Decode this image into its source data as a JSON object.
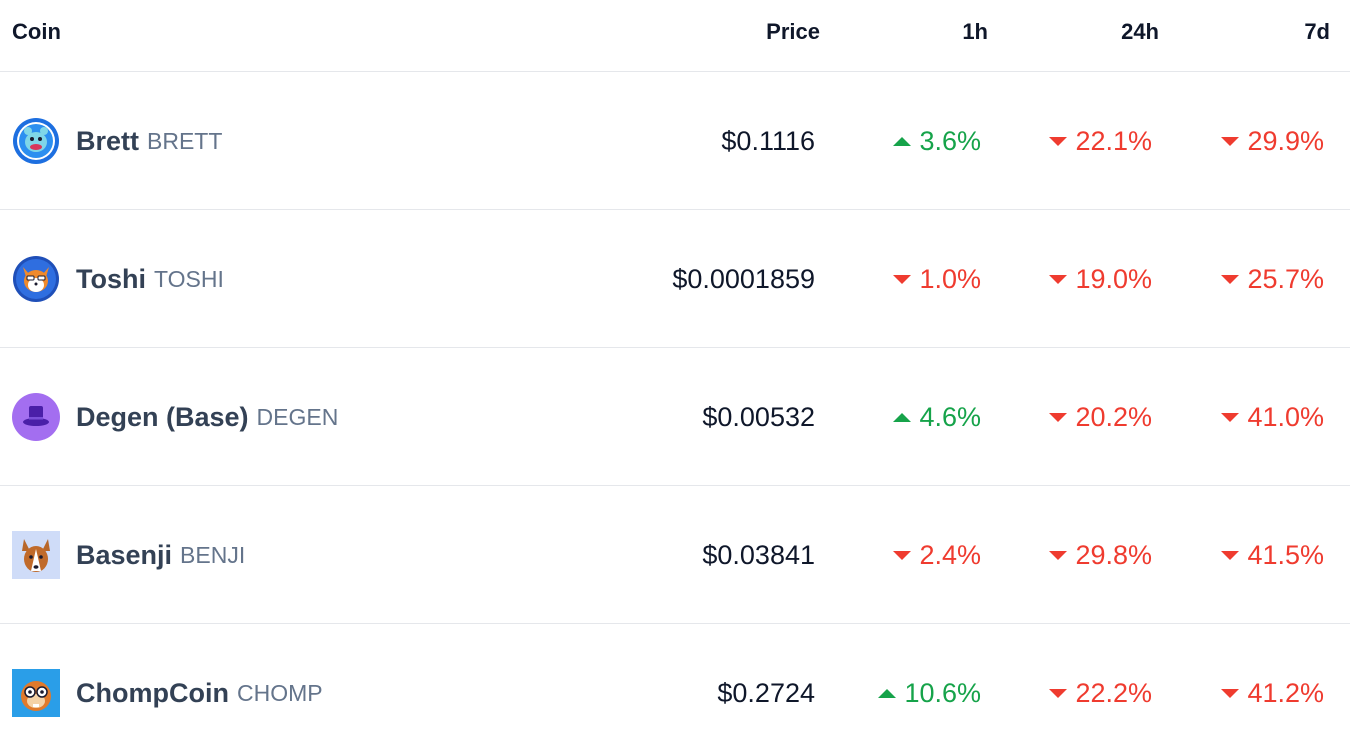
{
  "header": {
    "coin": "Coin",
    "price": "Price",
    "h1": "1h",
    "h24": "24h",
    "d7": "7d"
  },
  "colors": {
    "up": "#16a34a",
    "down": "#ef3b2f",
    "name": "#334155",
    "symbol": "#64748b"
  },
  "rows": [
    {
      "name": "Brett",
      "symbol": "BRETT",
      "icon": "brett-logo-icon",
      "price": "$0.1116",
      "h1": {
        "value": "3.6%",
        "dir": "up"
      },
      "h24": {
        "value": "22.1%",
        "dir": "down"
      },
      "d7": {
        "value": "29.9%",
        "dir": "down"
      }
    },
    {
      "name": "Toshi",
      "symbol": "TOSHI",
      "icon": "toshi-logo-icon",
      "price": "$0.0001859",
      "h1": {
        "value": "1.0%",
        "dir": "down"
      },
      "h24": {
        "value": "19.0%",
        "dir": "down"
      },
      "d7": {
        "value": "25.7%",
        "dir": "down"
      }
    },
    {
      "name": "Degen (Base)",
      "symbol": "DEGEN",
      "icon": "degen-logo-icon",
      "price": "$0.00532",
      "h1": {
        "value": "4.6%",
        "dir": "up"
      },
      "h24": {
        "value": "20.2%",
        "dir": "down"
      },
      "d7": {
        "value": "41.0%",
        "dir": "down"
      }
    },
    {
      "name": "Basenji",
      "symbol": "BENJI",
      "icon": "basenji-logo-icon",
      "price": "$0.03841",
      "h1": {
        "value": "2.4%",
        "dir": "down"
      },
      "h24": {
        "value": "29.8%",
        "dir": "down"
      },
      "d7": {
        "value": "41.5%",
        "dir": "down"
      }
    },
    {
      "name": "ChompCoin",
      "symbol": "CHOMP",
      "icon": "chompcoin-logo-icon",
      "price": "$0.2724",
      "h1": {
        "value": "10.6%",
        "dir": "up"
      },
      "h24": {
        "value": "22.2%",
        "dir": "down"
      },
      "d7": {
        "value": "41.2%",
        "dir": "down"
      }
    }
  ]
}
